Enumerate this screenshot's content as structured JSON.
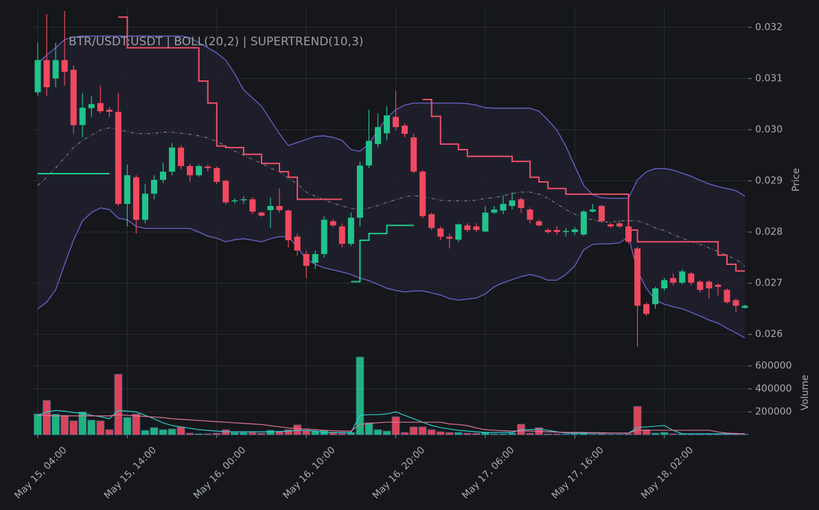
{
  "chart_data": [
    {
      "type": "candlestick",
      "title": "BTR/USDT:USDT | BOLL(20,2) | SUPERTREND(10,3)",
      "ylabel": "Price",
      "categories": [
        "May 15, 04:00",
        null,
        null,
        null,
        null,
        null,
        null,
        null,
        null,
        null,
        "May 15, 14:00",
        null,
        null,
        null,
        null,
        null,
        null,
        null,
        null,
        null,
        "May 16, 00:00",
        null,
        null,
        null,
        null,
        null,
        null,
        null,
        null,
        null,
        "May 16, 10:00",
        null,
        null,
        null,
        null,
        null,
        null,
        null,
        null,
        null,
        "May 16, 20:00",
        null,
        null,
        null,
        null,
        null,
        null,
        null,
        null,
        null,
        "May 17, 06:00",
        null,
        null,
        null,
        null,
        null,
        null,
        null,
        null,
        null,
        "May 17, 16:00",
        null,
        null,
        null,
        null,
        null,
        null,
        null,
        null,
        null,
        "May 18, 02:00",
        null,
        null,
        null,
        null,
        null,
        null,
        null,
        null,
        null
      ],
      "open": [
        0.03073,
        0.03136,
        0.031,
        0.03136,
        0.03117,
        0.03009,
        0.03042,
        0.03052,
        0.03039,
        0.03035,
        0.02855,
        0.02907,
        0.02824,
        0.02875,
        0.02902,
        0.02918,
        0.02965,
        0.02929,
        0.02911,
        0.02928,
        0.02925,
        0.029,
        0.0286,
        0.02862,
        0.02864,
        0.02838,
        0.02843,
        0.02851,
        0.02842,
        0.02791,
        0.02757,
        0.0274,
        0.02757,
        0.02821,
        0.02811,
        0.02777,
        0.02828,
        0.0293,
        0.02972,
        0.02993,
        0.03025,
        0.03008,
        0.02985,
        0.02918,
        0.02835,
        0.02807,
        0.02791,
        0.02785,
        0.02813,
        0.02811,
        0.02801,
        0.02838,
        0.02842,
        0.02851,
        0.02864,
        0.02844,
        0.02821,
        0.02804,
        0.02804,
        0.028,
        0.028,
        0.02795,
        0.0284,
        0.02851,
        0.02815,
        0.02817,
        0.02811,
        0.02768,
        0.02659,
        0.02659,
        0.0269,
        0.0271,
        0.02701,
        0.02719,
        0.02703,
        0.02703,
        0.02697,
        0.02687,
        0.02667,
        0.02652
      ],
      "high": [
        0.0317,
        0.03226,
        0.0317,
        0.03232,
        0.03126,
        0.03072,
        0.03066,
        0.03086,
        0.03045,
        0.03072,
        0.02932,
        0.02911,
        0.02894,
        0.02911,
        0.02935,
        0.02974,
        0.02969,
        0.02934,
        0.02932,
        0.02932,
        0.02928,
        0.02902,
        0.02866,
        0.0287,
        0.02868,
        0.0284,
        0.02867,
        0.02885,
        0.02844,
        0.02797,
        0.02764,
        0.02764,
        0.02831,
        0.02825,
        0.02817,
        0.02838,
        0.02938,
        0.03039,
        0.03032,
        0.03046,
        0.03075,
        0.03012,
        0.02992,
        0.02921,
        0.02838,
        0.02811,
        0.02797,
        0.02817,
        0.02817,
        0.02817,
        0.02851,
        0.02851,
        0.02871,
        0.02878,
        0.02867,
        0.02848,
        0.02824,
        0.02807,
        0.02811,
        0.02808,
        0.0281,
        0.02843,
        0.02855,
        0.02853,
        0.02818,
        0.02822,
        0.02814,
        0.02771,
        0.02663,
        0.02693,
        0.02711,
        0.02719,
        0.02727,
        0.02722,
        0.02706,
        0.02706,
        0.027,
        0.0269,
        0.0267,
        0.02658
      ],
      "low": [
        0.03066,
        0.03066,
        0.03083,
        0.03086,
        0.02992,
        0.02985,
        0.03025,
        0.03032,
        0.03025,
        0.02851,
        0.02811,
        0.02797,
        0.02817,
        0.02864,
        0.02896,
        0.02911,
        0.02923,
        0.02898,
        0.02908,
        0.02918,
        0.02894,
        0.02854,
        0.02856,
        0.02855,
        0.02835,
        0.0283,
        0.02808,
        0.02838,
        0.0277,
        0.02754,
        0.0271,
        0.02728,
        0.0275,
        0.0281,
        0.0277,
        0.02773,
        0.02811,
        0.02925,
        0.02965,
        0.02979,
        0.02998,
        0.02985,
        0.02915,
        0.02827,
        0.02804,
        0.02784,
        0.02768,
        0.02781,
        0.028,
        0.028,
        0.028,
        0.02835,
        0.02835,
        0.02844,
        0.02838,
        0.02817,
        0.02811,
        0.02797,
        0.02795,
        0.02791,
        0.02794,
        0.02793,
        0.02838,
        0.02818,
        0.02808,
        0.02808,
        0.02777,
        0.02576,
        0.02636,
        0.0265,
        0.02685,
        0.02696,
        0.02698,
        0.02696,
        0.02682,
        0.0267,
        0.02676,
        0.0266,
        0.02643,
        0.0265
      ],
      "close": [
        0.03136,
        0.03083,
        0.03136,
        0.03113,
        0.03009,
        0.03043,
        0.0305,
        0.03036,
        0.03035,
        0.02855,
        0.02911,
        0.02824,
        0.02875,
        0.02902,
        0.02918,
        0.02965,
        0.02929,
        0.02911,
        0.02929,
        0.02925,
        0.02898,
        0.02858,
        0.02862,
        0.02864,
        0.0284,
        0.02832,
        0.02851,
        0.02843,
        0.02784,
        0.02764,
        0.02734,
        0.02757,
        0.02824,
        0.02813,
        0.02777,
        0.02828,
        0.0293,
        0.02978,
        0.03005,
        0.03028,
        0.03005,
        0.02992,
        0.02918,
        0.02831,
        0.02808,
        0.02791,
        0.02787,
        0.02815,
        0.02804,
        0.02804,
        0.02838,
        0.02844,
        0.02855,
        0.02862,
        0.02847,
        0.02824,
        0.02813,
        0.028,
        0.028,
        0.02802,
        0.02805,
        0.0284,
        0.02844,
        0.02821,
        0.02811,
        0.02811,
        0.02781,
        0.02656,
        0.0264,
        0.0269,
        0.02706,
        0.02701,
        0.02723,
        0.02701,
        0.02687,
        0.0269,
        0.02693,
        0.02663,
        0.02656,
        0.02656
      ],
      "up_color": "#22c38b",
      "down_color": "#f1495f",
      "bollinger": {
        "upper": [
          0.03129,
          0.03146,
          0.0316,
          0.03176,
          0.03181,
          0.03183,
          0.03183,
          0.03183,
          0.03183,
          0.03183,
          0.03183,
          0.03183,
          0.03183,
          0.03183,
          0.03183,
          0.03183,
          0.03183,
          0.0318,
          0.0317,
          0.0316,
          0.0315,
          0.03136,
          0.03109,
          0.03078,
          0.03062,
          0.03046,
          0.03019,
          0.02992,
          0.02969,
          0.02975,
          0.02981,
          0.02987,
          0.02988,
          0.02985,
          0.02979,
          0.02961,
          0.02958,
          0.02972,
          0.02999,
          0.03023,
          0.03039,
          0.03048,
          0.03052,
          0.03052,
          0.03052,
          0.03052,
          0.03052,
          0.03052,
          0.03051,
          0.03048,
          0.03043,
          0.03042,
          0.03042,
          0.03042,
          0.03042,
          0.03042,
          0.03036,
          0.03019,
          0.02999,
          0.02968,
          0.02929,
          0.02891,
          0.02873,
          0.02867,
          0.02866,
          0.02866,
          0.02866,
          0.02902,
          0.02918,
          0.02924,
          0.02924,
          0.02921,
          0.02915,
          0.02909,
          0.02901,
          0.02894,
          0.02889,
          0.02885,
          0.02881,
          0.0287
        ],
        "middle": [
          0.02891,
          0.02907,
          0.02925,
          0.02945,
          0.02965,
          0.02979,
          0.02989,
          0.02999,
          0.03004,
          0.03001,
          0.02996,
          0.02993,
          0.02992,
          0.02993,
          0.02995,
          0.02995,
          0.02993,
          0.02991,
          0.02988,
          0.02984,
          0.02977,
          0.02968,
          0.02958,
          0.0295,
          0.02942,
          0.02934,
          0.02925,
          0.02918,
          0.02905,
          0.02894,
          0.02878,
          0.0287,
          0.02863,
          0.02856,
          0.02851,
          0.02846,
          0.02844,
          0.02847,
          0.02852,
          0.02858,
          0.02863,
          0.02869,
          0.02871,
          0.02869,
          0.02866,
          0.02862,
          0.02861,
          0.02861,
          0.02861,
          0.02862,
          0.02866,
          0.02867,
          0.02871,
          0.02875,
          0.02878,
          0.02878,
          0.02874,
          0.02866,
          0.02855,
          0.02844,
          0.02835,
          0.02828,
          0.02824,
          0.0282,
          0.02819,
          0.02822,
          0.02822,
          0.02822,
          0.02816,
          0.02808,
          0.02803,
          0.02795,
          0.02788,
          0.02781,
          0.02776,
          0.02769,
          0.02762,
          0.02754,
          0.02747,
          0.02733
        ],
        "lower": [
          0.0265,
          0.02663,
          0.02687,
          0.02737,
          0.02784,
          0.02822,
          0.02838,
          0.02847,
          0.02844,
          0.02827,
          0.02824,
          0.02811,
          0.02807,
          0.02807,
          0.02807,
          0.02807,
          0.02807,
          0.02807,
          0.028,
          0.02792,
          0.02788,
          0.02781,
          0.02785,
          0.02787,
          0.02784,
          0.02781,
          0.02787,
          0.02791,
          0.02791,
          0.02771,
          0.02747,
          0.02737,
          0.0273,
          0.02726,
          0.02722,
          0.02717,
          0.0271,
          0.02705,
          0.02698,
          0.0269,
          0.02686,
          0.02683,
          0.02685,
          0.02685,
          0.02681,
          0.02677,
          0.0267,
          0.02667,
          0.02669,
          0.02671,
          0.02679,
          0.02693,
          0.02701,
          0.02707,
          0.02713,
          0.02717,
          0.02713,
          0.02706,
          0.02706,
          0.02717,
          0.02734,
          0.02765,
          0.02776,
          0.02777,
          0.02777,
          0.02779,
          0.02791,
          0.02724,
          0.0269,
          0.02667,
          0.02659,
          0.02654,
          0.0265,
          0.02643,
          0.02636,
          0.02628,
          0.02622,
          0.02612,
          0.02603,
          0.02593
        ],
        "color": "#6b5ec6",
        "middle_color": "#8c8c90",
        "fill": "#1f1f2e"
      },
      "supertrend": {
        "up": [
          0.02914,
          0.02914,
          0.02914,
          0.02914,
          0.02914,
          0.02914,
          0.02914,
          0.02914,
          0.02914,
          null,
          null,
          null,
          null,
          null,
          null,
          null,
          null,
          null,
          null,
          null,
          null,
          null,
          null,
          null,
          null,
          null,
          null,
          null,
          null,
          null,
          null,
          null,
          null,
          null,
          null,
          0.02703,
          0.02784,
          0.02797,
          0.02797,
          0.02813,
          0.02813,
          0.02813,
          0.02813,
          null,
          null,
          null,
          null,
          null,
          null,
          null,
          null,
          null,
          null,
          null,
          null,
          null,
          null,
          null,
          null,
          null,
          null,
          null,
          null,
          null,
          null,
          null,
          null,
          null,
          null,
          null,
          null,
          null,
          null,
          null,
          null,
          null,
          null,
          null,
          null,
          null
        ],
        "down": [
          null,
          null,
          null,
          null,
          null,
          null,
          null,
          null,
          null,
          0.0322,
          0.0316,
          0.0316,
          0.0316,
          0.0316,
          0.0316,
          0.0316,
          0.0316,
          0.0316,
          0.03095,
          0.03052,
          0.02968,
          0.02965,
          0.02965,
          0.02952,
          0.02952,
          0.02934,
          0.02934,
          0.02918,
          0.02907,
          0.02864,
          0.02864,
          0.02864,
          0.02864,
          0.02864,
          0.02864,
          null,
          null,
          null,
          null,
          null,
          null,
          null,
          null,
          0.03059,
          0.03026,
          0.02972,
          0.02972,
          0.02961,
          0.02948,
          0.02948,
          0.02948,
          0.02948,
          0.02948,
          0.02938,
          0.02938,
          0.02907,
          0.02898,
          0.02885,
          0.02885,
          0.02874,
          0.02874,
          0.02874,
          0.02874,
          0.02874,
          0.02874,
          0.02874,
          0.02804,
          0.02781,
          0.02781,
          0.02781,
          0.02781,
          0.02781,
          0.02781,
          0.02781,
          0.02781,
          0.02781,
          0.02755,
          0.02737,
          0.02724,
          0.02724
        ],
        "up_color": "#1fce8a",
        "down_color": "#f0506a"
      },
      "ylim": [
        0.0256,
        0.0324
      ],
      "yticks": [
        0.026,
        0.027,
        0.028,
        0.029,
        {
          "value": 0.03,
          "label": "0.030"
        },
        0.031,
        0.032
      ],
      "grid": true
    },
    {
      "type": "bar",
      "ylabel": "Volume",
      "values": [
        182000,
        300000,
        180000,
        170000,
        122000,
        200000,
        128000,
        122000,
        45000,
        528000,
        152000,
        182000,
        39000,
        63000,
        45000,
        51000,
        69000,
        15000,
        9000,
        9000,
        15000,
        45000,
        21000,
        21000,
        21000,
        15000,
        39000,
        33000,
        45000,
        87000,
        39000,
        33000,
        39000,
        21000,
        15000,
        21000,
        678000,
        105000,
        45000,
        33000,
        158000,
        21000,
        69000,
        69000,
        45000,
        27000,
        21000,
        21000,
        15000,
        15000,
        21000,
        9000,
        9000,
        15000,
        93000,
        15000,
        63000,
        9000,
        9000,
        6000,
        9000,
        21000,
        6000,
        9000,
        6000,
        6000,
        9000,
        248000,
        45000,
        15000,
        21000,
        9000,
        9000,
        6000,
        6000,
        6000,
        6000,
        6000,
        6000,
        6000
      ],
      "averages": [
        {
          "color": "#2ed3d3",
          "values": [
            170000,
            200000,
            212000,
            206000,
            194000,
            188000,
            170000,
            158000,
            140000,
            212000,
            206000,
            200000,
            170000,
            140000,
            104000,
            81000,
            69000,
            57000,
            45000,
            39000,
            33000,
            27000,
            27000,
            27000,
            27000,
            27000,
            27000,
            27000,
            33000,
            39000,
            39000,
            33000,
            21000,
            21000,
            21000,
            21000,
            170000,
            176000,
            176000,
            182000,
            200000,
            170000,
            140000,
            110000,
            81000,
            63000,
            51000,
            39000,
            33000,
            27000,
            21000,
            21000,
            21000,
            21000,
            45000,
            45000,
            51000,
            39000,
            27000,
            15000,
            15000,
            15000,
            15000,
            15000,
            15000,
            15000,
            15000,
            63000,
            69000,
            75000,
            81000,
            39000,
            9000,
            9000,
            9000,
            9000,
            9000,
            9000,
            9000,
            9000
          ]
        },
        {
          "color": "#e4789a",
          "values": [
            170000,
            168000,
            166000,
            165000,
            165000,
            165000,
            165000,
            165000,
            165000,
            175000,
            170000,
            165000,
            160000,
            155000,
            150000,
            140000,
            135000,
            130000,
            125000,
            120000,
            115000,
            110000,
            105000,
            100000,
            95000,
            90000,
            80000,
            70000,
            60000,
            55000,
            50000,
            45000,
            40000,
            36000,
            33000,
            33000,
            90000,
            100000,
            105000,
            110000,
            110000,
            110000,
            110000,
            110000,
            110000,
            110000,
            95000,
            90000,
            80000,
            60000,
            45000,
            40000,
            36000,
            33000,
            33000,
            33000,
            30000,
            27000,
            24000,
            21000,
            21000,
            20000,
            19000,
            18000,
            16000,
            15000,
            15000,
            40000,
            40000,
            40000,
            40000,
            40000,
            40000,
            40000,
            40000,
            40000,
            25000,
            15000,
            12000,
            9000
          ]
        }
      ],
      "ylim": [
        0,
        690000
      ],
      "yticks": [
        200000,
        400000,
        600000
      ],
      "grid": true
    }
  ]
}
